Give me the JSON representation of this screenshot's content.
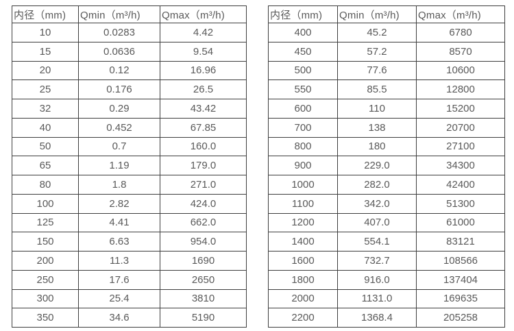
{
  "page": {
    "background_color": "#ffffff",
    "text_color": "#595959",
    "border_color": "#3d3d3d"
  },
  "tables": [
    {
      "title": "small-diameter-flow-ranges",
      "headers": [
        "内径（mm)",
        "Qmin（m³/h)",
        "Qmax（m³/h)"
      ],
      "rows": [
        [
          "10",
          "0.0283",
          "4.42"
        ],
        [
          "15",
          "0.0636",
          "9.54"
        ],
        [
          "20",
          "0.12",
          "16.96"
        ],
        [
          "25",
          "0.176",
          "26.5"
        ],
        [
          "32",
          "0.29",
          "43.42"
        ],
        [
          "40",
          "0.452",
          "67.85"
        ],
        [
          "50",
          "0.7",
          "160.0"
        ],
        [
          "65",
          "1.19",
          "179.0"
        ],
        [
          "80",
          "1.8",
          "271.0"
        ],
        [
          "100",
          "2.82",
          "424.0"
        ],
        [
          "125",
          "4.41",
          "662.0"
        ],
        [
          "150",
          "6.63",
          "954.0"
        ],
        [
          "200",
          "11.3",
          "1690"
        ],
        [
          "250",
          "17.6",
          "2650"
        ],
        [
          "300",
          "25.4",
          "3810"
        ],
        [
          "350",
          "34.6",
          "5190"
        ]
      ]
    },
    {
      "title": "large-diameter-flow-ranges",
      "headers": [
        "内径（mm)",
        "Qmin（m³/h)",
        "Qmax（m³/h)"
      ],
      "rows": [
        [
          "400",
          "45.2",
          "6780"
        ],
        [
          "450",
          "57.2",
          "8570"
        ],
        [
          "500",
          "77.6",
          "10600"
        ],
        [
          "550",
          "85.5",
          "12800"
        ],
        [
          "600",
          "110",
          "15200"
        ],
        [
          "700",
          "138",
          "20700"
        ],
        [
          "800",
          "180",
          "27100"
        ],
        [
          "900",
          "229.0",
          "34300"
        ],
        [
          "1000",
          "282.0",
          "42400"
        ],
        [
          "1100",
          "342.0",
          "51300"
        ],
        [
          "1200",
          "407.0",
          "61000"
        ],
        [
          "1400",
          "554.1",
          "83121"
        ],
        [
          "1600",
          "732.7",
          "108566"
        ],
        [
          "1800",
          "916.0",
          "137404"
        ],
        [
          "2000",
          "1131.0",
          "169635"
        ],
        [
          "2200",
          "1368.4",
          "205258"
        ]
      ]
    }
  ]
}
